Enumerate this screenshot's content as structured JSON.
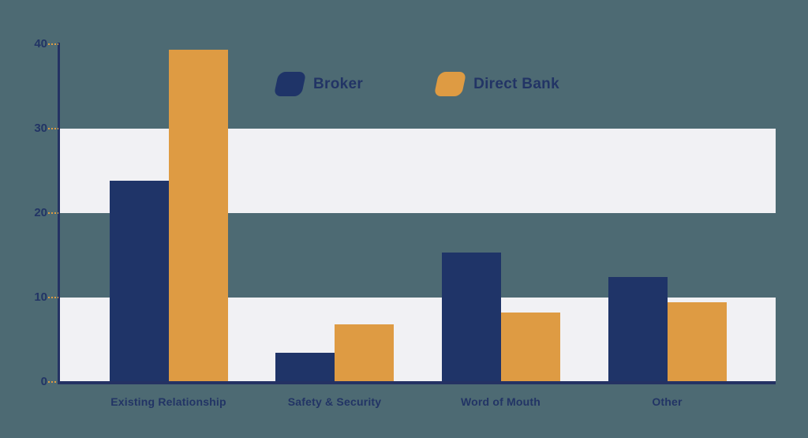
{
  "chart": {
    "background_color": "#4d6a73",
    "band_color": "#f1f1f4",
    "axis_color": "#243263",
    "tick_mark_color": "#de9b43",
    "text_color": "#223465"
  },
  "chart_data": {
    "type": "bar",
    "title": "",
    "xlabel": "",
    "ylabel": "",
    "categories": [
      "Existing Relationship",
      "Safety & Security",
      "Word of Mouth",
      "Other"
    ],
    "series": [
      {
        "name": "Broker",
        "color": "#1f3468",
        "values": [
          23.8,
          3.4,
          15.3,
          12.4
        ]
      },
      {
        "name": "Direct Bank",
        "color": "#de9b43",
        "values": [
          39.3,
          6.8,
          8.2,
          9.4
        ]
      }
    ],
    "yticks": [
      0,
      10,
      20,
      30,
      40
    ],
    "ylim": [
      0,
      40
    ],
    "highlight_bands": [
      [
        0,
        10
      ],
      [
        20,
        30
      ]
    ],
    "grid": false,
    "legend_position": "top-center"
  }
}
